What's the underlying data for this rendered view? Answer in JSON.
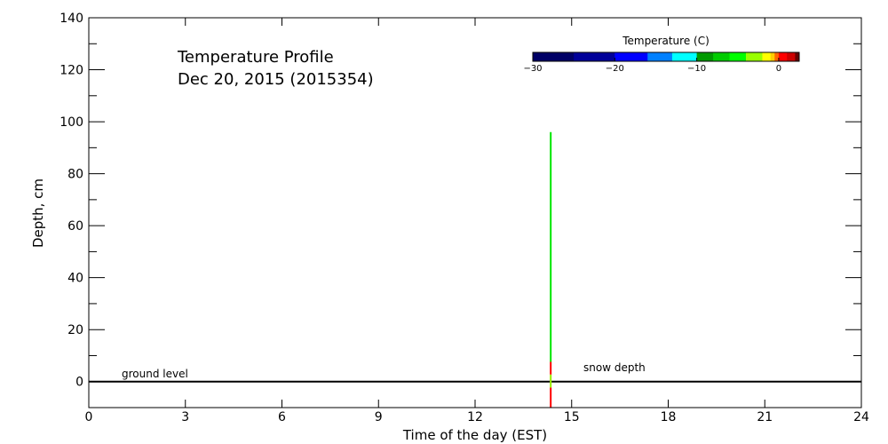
{
  "chart_data": {
    "type": "line",
    "title": "Temperature Profile",
    "subtitle": "Dec 20, 2015 (2015354)",
    "xlabel": "Time of the day (EST)",
    "ylabel": "Depth, cm",
    "xlim": [
      0,
      24
    ],
    "ylim": [
      -10,
      140
    ],
    "xticks": [
      0,
      3,
      6,
      9,
      12,
      15,
      18,
      21,
      24
    ],
    "yticks": [
      0,
      20,
      40,
      60,
      80,
      100,
      120,
      140
    ],
    "grid": false,
    "annotations": [
      {
        "text": "ground level",
        "x": 1.0,
        "y": 2
      },
      {
        "text": "snow depth",
        "x": 15.3,
        "y": 4
      }
    ],
    "ground_level": 0,
    "profile": {
      "time": 14.35,
      "segments": [
        {
          "from": 7.6,
          "to": 96,
          "color": "#00e600"
        },
        {
          "from": 2.7,
          "to": 7.6,
          "color": "#ff0000"
        },
        {
          "from": -2.3,
          "to": 2.7,
          "color": "#99ee00"
        },
        {
          "from": -10,
          "to": -2.3,
          "color": "#ff0000"
        }
      ]
    },
    "colorbar": {
      "label": "Temperature (C)",
      "range": [
        -30,
        2.5
      ],
      "ticks": [
        -30,
        -20,
        -10,
        0
      ],
      "bins": [
        {
          "from": -30,
          "to": -25,
          "color": "#000066"
        },
        {
          "from": -25,
          "to": -20,
          "color": "#000099"
        },
        {
          "from": -20,
          "to": -16,
          "color": "#0000ff"
        },
        {
          "from": -16,
          "to": -13,
          "color": "#0080ff"
        },
        {
          "from": -13,
          "to": -10,
          "color": "#00ffff"
        },
        {
          "from": -10,
          "to": -8,
          "color": "#009900"
        },
        {
          "from": -8,
          "to": -6,
          "color": "#00cc00"
        },
        {
          "from": -6,
          "to": -4,
          "color": "#00ff00"
        },
        {
          "from": -4,
          "to": -2,
          "color": "#99ff00"
        },
        {
          "from": -2,
          "to": -1,
          "color": "#ffff00"
        },
        {
          "from": -1,
          "to": -0.5,
          "color": "#ffcc00"
        },
        {
          "from": -0.5,
          "to": 0,
          "color": "#ff6600"
        },
        {
          "from": 0,
          "to": 1,
          "color": "#ff0000"
        },
        {
          "from": 1,
          "to": 2,
          "color": "#cc0000"
        },
        {
          "from": 2,
          "to": 2.5,
          "color": "#660000"
        }
      ]
    }
  }
}
